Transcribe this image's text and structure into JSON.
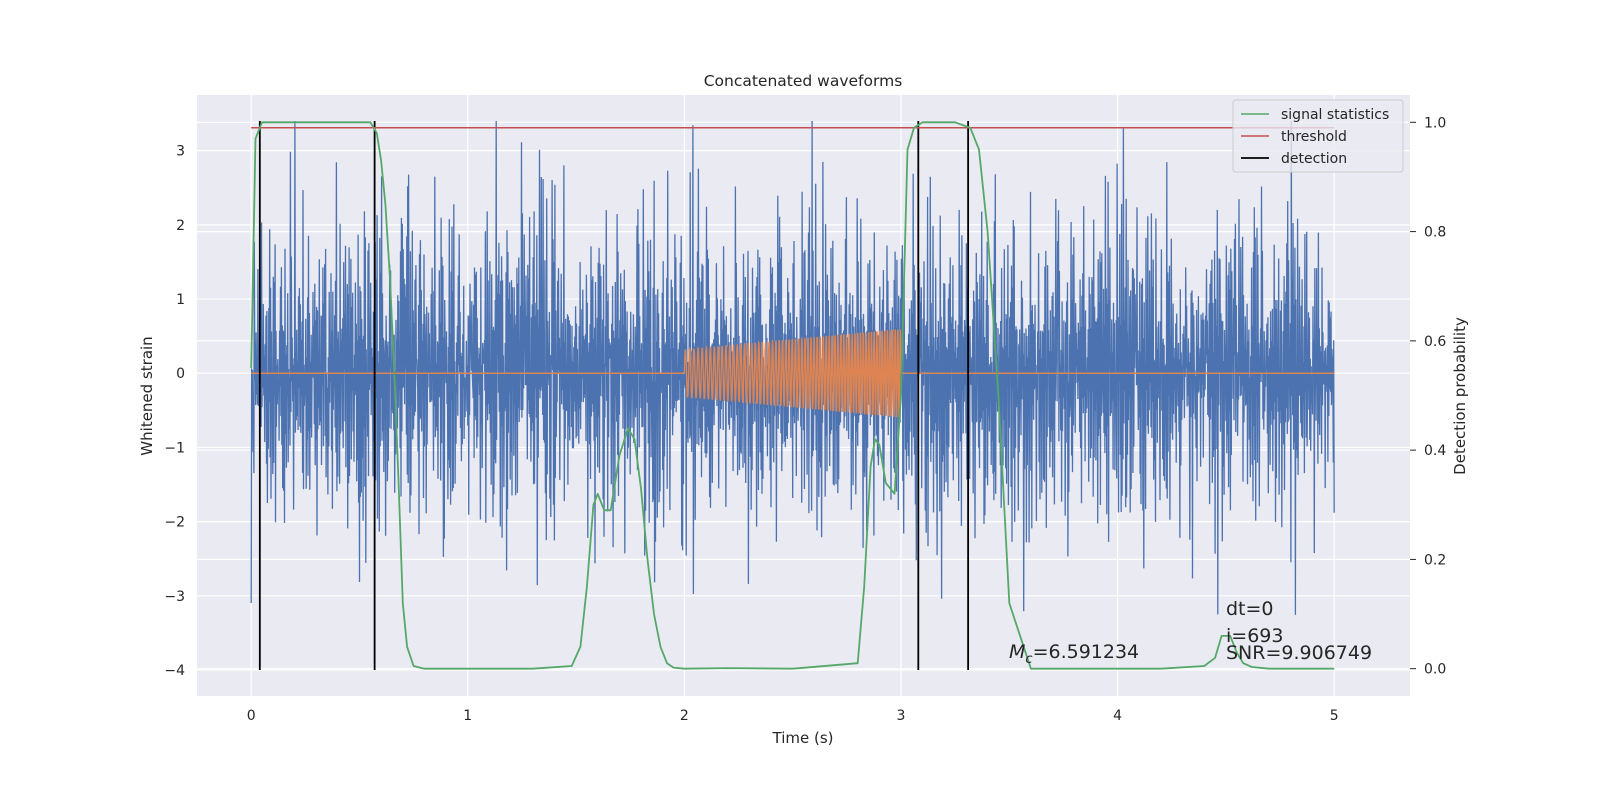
{
  "chart_data": {
    "type": "line",
    "title": "Concatenated waveforms",
    "xlabel": "Time (s)",
    "ylabel": "Whitened strain",
    "y2label": "Detection probability",
    "xlim": [
      -0.25,
      5.35
    ],
    "ylim": [
      -4.35,
      3.75
    ],
    "y2lim": [
      -0.05,
      1.05
    ],
    "xticks": [
      0,
      1,
      2,
      3,
      4,
      5
    ],
    "xtick_labels": [
      "0",
      "1",
      "2",
      "3",
      "4",
      "5"
    ],
    "yticks": [
      3,
      2,
      1,
      0,
      -1,
      -2,
      -3,
      -4
    ],
    "ytick_labels": [
      "3",
      "2",
      "1",
      "0",
      "−1",
      "−2",
      "−3",
      "−4"
    ],
    "y2ticks": [
      1.0,
      0.8,
      0.6,
      0.4,
      0.2,
      0.0
    ],
    "y2tick_labels": [
      "1.0",
      "0.8",
      "0.6",
      "0.4",
      "0.2",
      "0.0"
    ],
    "grid": true,
    "legend_position": "top-right",
    "background": "#eaeaf2",
    "colors": {
      "strain": "#4c72b0",
      "injection": "#dd8452",
      "signal_statistics": "#55a868",
      "threshold": "#c44e52",
      "detection": "#000000"
    },
    "strain_noise": {
      "x_range": [
        0,
        5
      ],
      "approx_amplitude_range": [
        -3.8,
        3.4
      ]
    },
    "injection": {
      "x_start": 2.0,
      "x_end": 3.0,
      "amplitude_start": 0.32,
      "amplitude_end": 0.6,
      "cycles": 50
    },
    "series": [
      {
        "name": "signal statistics",
        "axis": "right",
        "x": [
          0.0,
          0.02,
          0.05,
          0.1,
          0.2,
          0.35,
          0.5,
          0.55,
          0.58,
          0.6,
          0.62,
          0.64,
          0.66,
          0.68,
          0.7,
          0.72,
          0.75,
          0.8,
          1.0,
          1.3,
          1.48,
          1.52,
          1.55,
          1.58,
          1.6,
          1.63,
          1.66,
          1.7,
          1.74,
          1.77,
          1.8,
          1.83,
          1.86,
          1.89,
          1.92,
          1.95,
          2.0,
          2.2,
          2.5,
          2.8,
          2.83,
          2.86,
          2.88,
          2.9,
          2.93,
          2.97,
          3.0,
          3.03,
          3.06,
          3.1,
          3.15,
          3.25,
          3.32,
          3.36,
          3.4,
          3.45,
          3.5,
          3.6,
          3.8,
          4.2,
          4.4,
          4.45,
          4.48,
          4.52,
          4.55,
          4.58,
          4.62,
          4.7,
          4.8,
          5.0
        ],
        "y": [
          0.55,
          0.97,
          1.0,
          1.0,
          1.0,
          1.0,
          1.0,
          1.0,
          0.98,
          0.93,
          0.85,
          0.72,
          0.55,
          0.35,
          0.12,
          0.04,
          0.005,
          0.0,
          0.0,
          0.0,
          0.005,
          0.04,
          0.15,
          0.3,
          0.32,
          0.29,
          0.29,
          0.39,
          0.44,
          0.42,
          0.33,
          0.2,
          0.1,
          0.04,
          0.01,
          0.002,
          0.0,
          0.001,
          0.0,
          0.01,
          0.15,
          0.37,
          0.42,
          0.41,
          0.34,
          0.32,
          0.5,
          0.95,
          0.99,
          1.0,
          1.0,
          1.0,
          0.99,
          0.95,
          0.8,
          0.5,
          0.12,
          0.0,
          0.0,
          0.0,
          0.005,
          0.02,
          0.06,
          0.06,
          0.03,
          0.01,
          0.003,
          0.0,
          0.0,
          0.0
        ]
      },
      {
        "name": "threshold",
        "axis": "right",
        "y_value": 0.99
      },
      {
        "name": "detection",
        "axis": "left",
        "x_values": [
          0.04,
          0.57,
          3.08,
          3.31
        ],
        "y_range": [
          -4.0,
          3.4
        ]
      }
    ],
    "annotations": {
      "mc": "=6.591234",
      "mc_prefix": "M",
      "mc_subscript": "c",
      "dt": "dt=0",
      "i": "i=693",
      "snr": "SNR=9.906749"
    }
  }
}
